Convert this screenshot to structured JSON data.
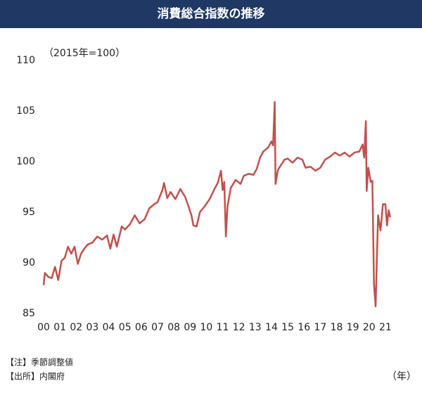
{
  "chart_data": {
    "type": "line",
    "title": "消費総合指数の推移",
    "subtitle": "（2015年=100）",
    "x_label": "（年）",
    "notes": [
      "【注】季節調整値",
      "【出所】内閣府"
    ],
    "color": "#c0504d",
    "xlim": [
      2000,
      2021.5
    ],
    "ylim": [
      85,
      110
    ],
    "yticks": [
      85,
      90,
      95,
      100,
      105,
      110
    ],
    "xticks": [
      {
        "value": 2000,
        "label": "00"
      },
      {
        "value": 2001,
        "label": "01"
      },
      {
        "value": 2002,
        "label": "02"
      },
      {
        "value": 2003,
        "label": "03"
      },
      {
        "value": 2004,
        "label": "04"
      },
      {
        "value": 2005,
        "label": "05"
      },
      {
        "value": 2006,
        "label": "06"
      },
      {
        "value": 2007,
        "label": "07"
      },
      {
        "value": 2008,
        "label": "08"
      },
      {
        "value": 2009,
        "label": "09"
      },
      {
        "value": 2010,
        "label": "10"
      },
      {
        "value": 2011,
        "label": "11"
      },
      {
        "value": 2012,
        "label": "12"
      },
      {
        "value": 2013,
        "label": "13"
      },
      {
        "value": 2014,
        "label": "14"
      },
      {
        "value": 2015,
        "label": "15"
      },
      {
        "value": 2016,
        "label": "16"
      },
      {
        "value": 2017,
        "label": "17"
      },
      {
        "value": 2018,
        "label": "18"
      },
      {
        "value": 2019,
        "label": "19"
      },
      {
        "value": 2020,
        "label": "20"
      },
      {
        "value": 2021,
        "label": "21"
      }
    ],
    "x": [
      2000.0,
      2000.08,
      2000.3,
      2000.5,
      2000.7,
      2000.9,
      2001.1,
      2001.3,
      2001.5,
      2001.7,
      2001.9,
      2002.1,
      2002.3,
      2002.5,
      2002.7,
      2003.0,
      2003.3,
      2003.6,
      2003.9,
      2004.1,
      2004.3,
      2004.5,
      2004.8,
      2005.0,
      2005.3,
      2005.6,
      2005.9,
      2006.2,
      2006.5,
      2006.8,
      2007.0,
      2007.3,
      2007.4,
      2007.6,
      2007.8,
      2008.1,
      2008.4,
      2008.7,
      2008.9,
      2009.1,
      2009.2,
      2009.4,
      2009.6,
      2009.9,
      2010.2,
      2010.5,
      2010.7,
      2010.9,
      2011.0,
      2011.1,
      2011.2,
      2011.3,
      2011.5,
      2011.8,
      2012.1,
      2012.3,
      2012.6,
      2012.9,
      2013.1,
      2013.3,
      2013.5,
      2013.8,
      2014.0,
      2014.1,
      2014.2,
      2014.25,
      2014.4,
      2014.6,
      2014.8,
      2015.0,
      2015.3,
      2015.6,
      2015.9,
      2016.1,
      2016.4,
      2016.7,
      2017.0,
      2017.3,
      2017.6,
      2017.9,
      2018.2,
      2018.5,
      2018.8,
      2019.1,
      2019.4,
      2019.6,
      2019.7,
      2019.8,
      2019.85,
      2019.95,
      2020.1,
      2020.2,
      2020.3,
      2020.4,
      2020.55,
      2020.7,
      2020.85,
      2021.0,
      2021.1,
      2021.2,
      2021.3
    ],
    "values": [
      87.8,
      89.0,
      88.6,
      88.5,
      89.6,
      88.3,
      90.2,
      90.5,
      91.6,
      90.9,
      91.6,
      89.9,
      90.9,
      91.4,
      91.8,
      92.0,
      92.6,
      92.3,
      92.7,
      91.4,
      92.8,
      91.6,
      93.6,
      93.3,
      93.8,
      94.7,
      93.9,
      94.3,
      95.4,
      95.8,
      96.0,
      97.2,
      97.9,
      96.4,
      97.0,
      96.3,
      97.3,
      96.5,
      95.6,
      94.6,
      93.7,
      93.6,
      95.0,
      95.6,
      96.3,
      97.3,
      97.9,
      99.1,
      97.2,
      98.0,
      92.6,
      95.6,
      97.4,
      98.2,
      97.8,
      98.6,
      98.8,
      98.7,
      99.3,
      100.4,
      101.0,
      101.4,
      102.0,
      101.6,
      105.9,
      97.8,
      99.2,
      99.7,
      100.2,
      100.3,
      99.9,
      100.4,
      100.2,
      99.4,
      99.5,
      99.1,
      99.4,
      100.2,
      100.5,
      100.9,
      100.6,
      100.9,
      100.5,
      100.9,
      101.0,
      101.7,
      100.4,
      104.0,
      97.1,
      99.4,
      98.0,
      98.1,
      87.9,
      85.7,
      94.7,
      93.2,
      95.8,
      95.8,
      93.7,
      95.2,
      94.5
    ]
  }
}
